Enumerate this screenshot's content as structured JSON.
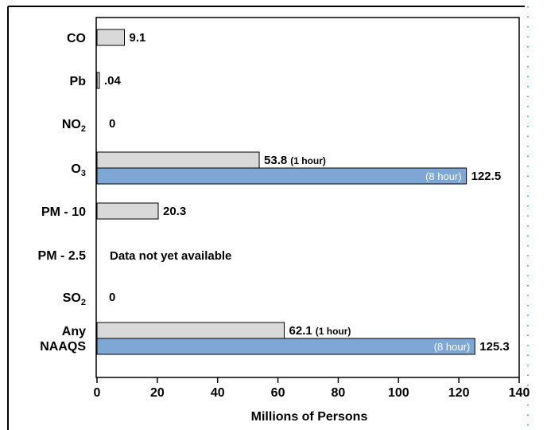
{
  "chart_data": {
    "type": "bar",
    "orientation": "horizontal",
    "title": "",
    "xlabel": "Millions of Persons",
    "ylabel": "",
    "xlim": [
      0,
      140
    ],
    "x_ticks": [
      "0",
      "20",
      "40",
      "60",
      "80",
      "100",
      "120",
      "140"
    ],
    "colors": {
      "primary": "#d9d9d9",
      "secondary": "#7fa7d6"
    },
    "categories": [
      {
        "label": "CO",
        "sub": "",
        "label_line2": "",
        "bars": [
          {
            "value": 9.1,
            "label": "9.1",
            "note": "",
            "inner": "",
            "color": "#d9d9d9"
          }
        ]
      },
      {
        "label": "Pb",
        "sub": "",
        "label_line2": "",
        "bars": [
          {
            "value": 0.04,
            "label": ".04",
            "note": "",
            "inner": "",
            "color": "#d9d9d9"
          }
        ]
      },
      {
        "label": "NO",
        "sub": "2",
        "label_line2": "",
        "bars": [
          {
            "value": 0,
            "label": "0",
            "note": "",
            "inner": "",
            "color": "#d9d9d9"
          }
        ]
      },
      {
        "label": "O",
        "sub": "3",
        "label_line2": "",
        "bars": [
          {
            "value": 53.8,
            "label": "53.8",
            "note": "(1 hour)",
            "inner": "",
            "color": "#d9d9d9"
          },
          {
            "value": 122.5,
            "label": "122.5",
            "note": "",
            "inner": "(8 hour)",
            "color": "#7fa7d6"
          }
        ]
      },
      {
        "label": "PM - 10",
        "sub": "",
        "label_line2": "",
        "bars": [
          {
            "value": 20.3,
            "label": "20.3",
            "note": "",
            "inner": "",
            "color": "#d9d9d9"
          }
        ]
      },
      {
        "label": "PM - 2.5",
        "sub": "",
        "label_line2": "",
        "bars": [],
        "text": "Data not yet available"
      },
      {
        "label": "SO",
        "sub": "2",
        "label_line2": "",
        "bars": [
          {
            "value": 0,
            "label": "0",
            "note": "",
            "inner": "",
            "color": "#d9d9d9"
          }
        ]
      },
      {
        "label": "Any",
        "sub": "",
        "label_line2": "NAAQS",
        "bars": [
          {
            "value": 62.1,
            "label": "62.1",
            "note": "(1 hour)",
            "inner": "",
            "color": "#d9d9d9"
          },
          {
            "value": 125.3,
            "label": "125.3",
            "note": "",
            "inner": "(8 hour)",
            "color": "#7fa7d6"
          }
        ]
      }
    ]
  }
}
